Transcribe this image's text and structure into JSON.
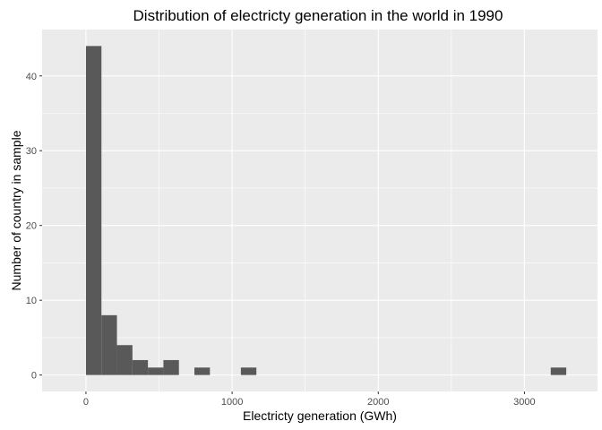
{
  "chart_data": {
    "type": "histogram",
    "title": "Distribution of electricty generation in the world in 1990",
    "xlabel": "Electricty generation (GWh)",
    "ylabel": "Number of country in sample",
    "xlim": [
      -300,
      3500
    ],
    "ylim": [
      -2.2,
      46.2
    ],
    "xticks": [
      0,
      1000,
      2000,
      3000
    ],
    "yticks": [
      0,
      10,
      20,
      30,
      40
    ],
    "grid": true,
    "bar_color": "#595959",
    "panel_color": "#ebebeb",
    "bins": [
      {
        "x0": 0,
        "x1": 106,
        "count": 44
      },
      {
        "x0": 106,
        "x1": 212,
        "count": 8
      },
      {
        "x0": 212,
        "x1": 318,
        "count": 4
      },
      {
        "x0": 318,
        "x1": 424,
        "count": 2
      },
      {
        "x0": 424,
        "x1": 530,
        "count": 1
      },
      {
        "x0": 530,
        "x1": 636,
        "count": 2
      },
      {
        "x0": 636,
        "x1": 742,
        "count": 0
      },
      {
        "x0": 742,
        "x1": 848,
        "count": 1
      },
      {
        "x0": 848,
        "x1": 954,
        "count": 0
      },
      {
        "x0": 954,
        "x1": 1060,
        "count": 0
      },
      {
        "x0": 1060,
        "x1": 1166,
        "count": 1
      },
      {
        "x0": 3180,
        "x1": 3286,
        "count": 1
      }
    ]
  }
}
